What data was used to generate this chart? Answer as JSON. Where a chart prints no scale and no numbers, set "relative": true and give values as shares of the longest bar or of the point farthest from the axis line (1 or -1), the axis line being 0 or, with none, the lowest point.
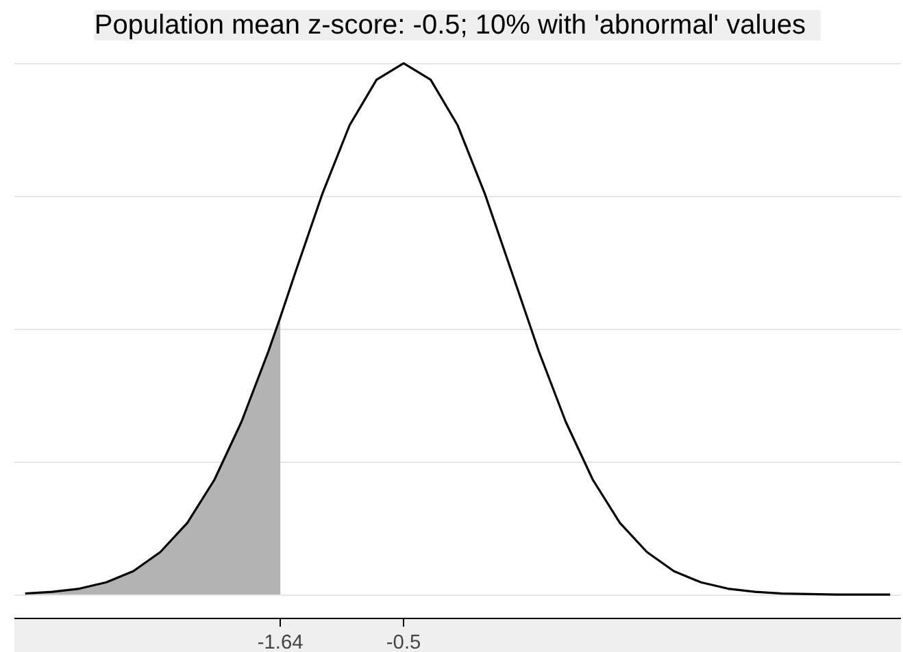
{
  "chart_data": {
    "type": "line",
    "title": "Population mean z-score:  -0.5;  10% with 'abnormal' values",
    "relative": true,
    "grid": "y",
    "xlim": [
      -4.1,
      4.1
    ],
    "xticks": [
      -1.64,
      -0.5
    ],
    "series": [
      {
        "type": "area",
        "color": "#b3b3b3",
        "x": [
          -4,
          -3.75,
          -3.5,
          -3.25,
          -3,
          -2.75,
          -2.5,
          -2.25,
          -2,
          -1.75,
          -1.64
        ],
        "values": [
          0.002,
          0.005,
          0.011,
          0.023,
          0.044,
          0.08,
          0.135,
          0.216,
          0.325,
          0.458,
          0.522
        ]
      },
      {
        "color": "#000000",
        "x": [
          -4,
          -3.75,
          -3.5,
          -3.25,
          -3,
          -2.75,
          -2.5,
          -2.25,
          -2,
          -1.75,
          -1.64,
          -1.5,
          -1.25,
          -1,
          -0.75,
          -0.5,
          -0.25,
          0,
          0.25,
          0.5,
          0.75,
          1,
          1.25,
          1.5,
          1.75,
          2,
          2.25,
          2.5,
          2.75,
          3,
          3.25,
          3.5,
          3.75,
          4
        ],
        "values": [
          0.002,
          0.005,
          0.011,
          0.023,
          0.044,
          0.08,
          0.135,
          0.216,
          0.325,
          0.458,
          0.522,
          0.607,
          0.755,
          0.883,
          0.969,
          1,
          0.969,
          0.883,
          0.755,
          0.607,
          0.458,
          0.325,
          0.216,
          0.135,
          0.08,
          0.044,
          0.023,
          0.011,
          0.005,
          0.002,
          0.001,
          0.0,
          0.0,
          0.0
        ]
      }
    ]
  }
}
